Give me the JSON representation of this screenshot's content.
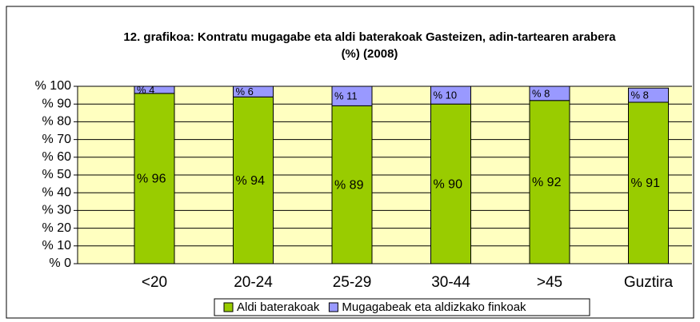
{
  "chart_data": {
    "type": "stacked_bar",
    "title": "12. grafikoa: Kontratu mugagabe eta aldi baterakoak Gasteizen, adin-tartearen arabera",
    "subtitle": "(%) (2008)",
    "categories": [
      "<20",
      "20-24",
      "25-29",
      "30-44",
      ">45",
      "Guztira"
    ],
    "series": [
      {
        "name": "Aldi baterakoak",
        "color": "#99cc00",
        "values": [
          96,
          94,
          89,
          90,
          92,
          91
        ],
        "value_labels": [
          "% 96",
          "% 94",
          "% 89",
          "% 90",
          "% 92",
          "% 91"
        ]
      },
      {
        "name": "Mugagabeak eta aldizkako finkoak",
        "color": "#9999ff",
        "values": [
          4,
          6,
          11,
          10,
          8,
          8
        ],
        "value_labels": [
          "% 4",
          "% 6",
          "% 11",
          "% 10",
          "% 8",
          "% 8"
        ]
      }
    ],
    "ylim": [
      0,
      100
    ],
    "yticks": [
      {
        "value": 0,
        "label": "% 0"
      },
      {
        "value": 10,
        "label": "% 10"
      },
      {
        "value": 20,
        "label": "% 20"
      },
      {
        "value": 30,
        "label": "% 30"
      },
      {
        "value": 40,
        "label": "% 40"
      },
      {
        "value": 50,
        "label": "% 50"
      },
      {
        "value": 60,
        "label": "% 60"
      },
      {
        "value": 70,
        "label": "% 70"
      },
      {
        "value": 80,
        "label": "% 80"
      },
      {
        "value": 90,
        "label": "% 90"
      },
      {
        "value": 100,
        "label": "% 100"
      }
    ],
    "grid": true,
    "legend": "bottom"
  }
}
